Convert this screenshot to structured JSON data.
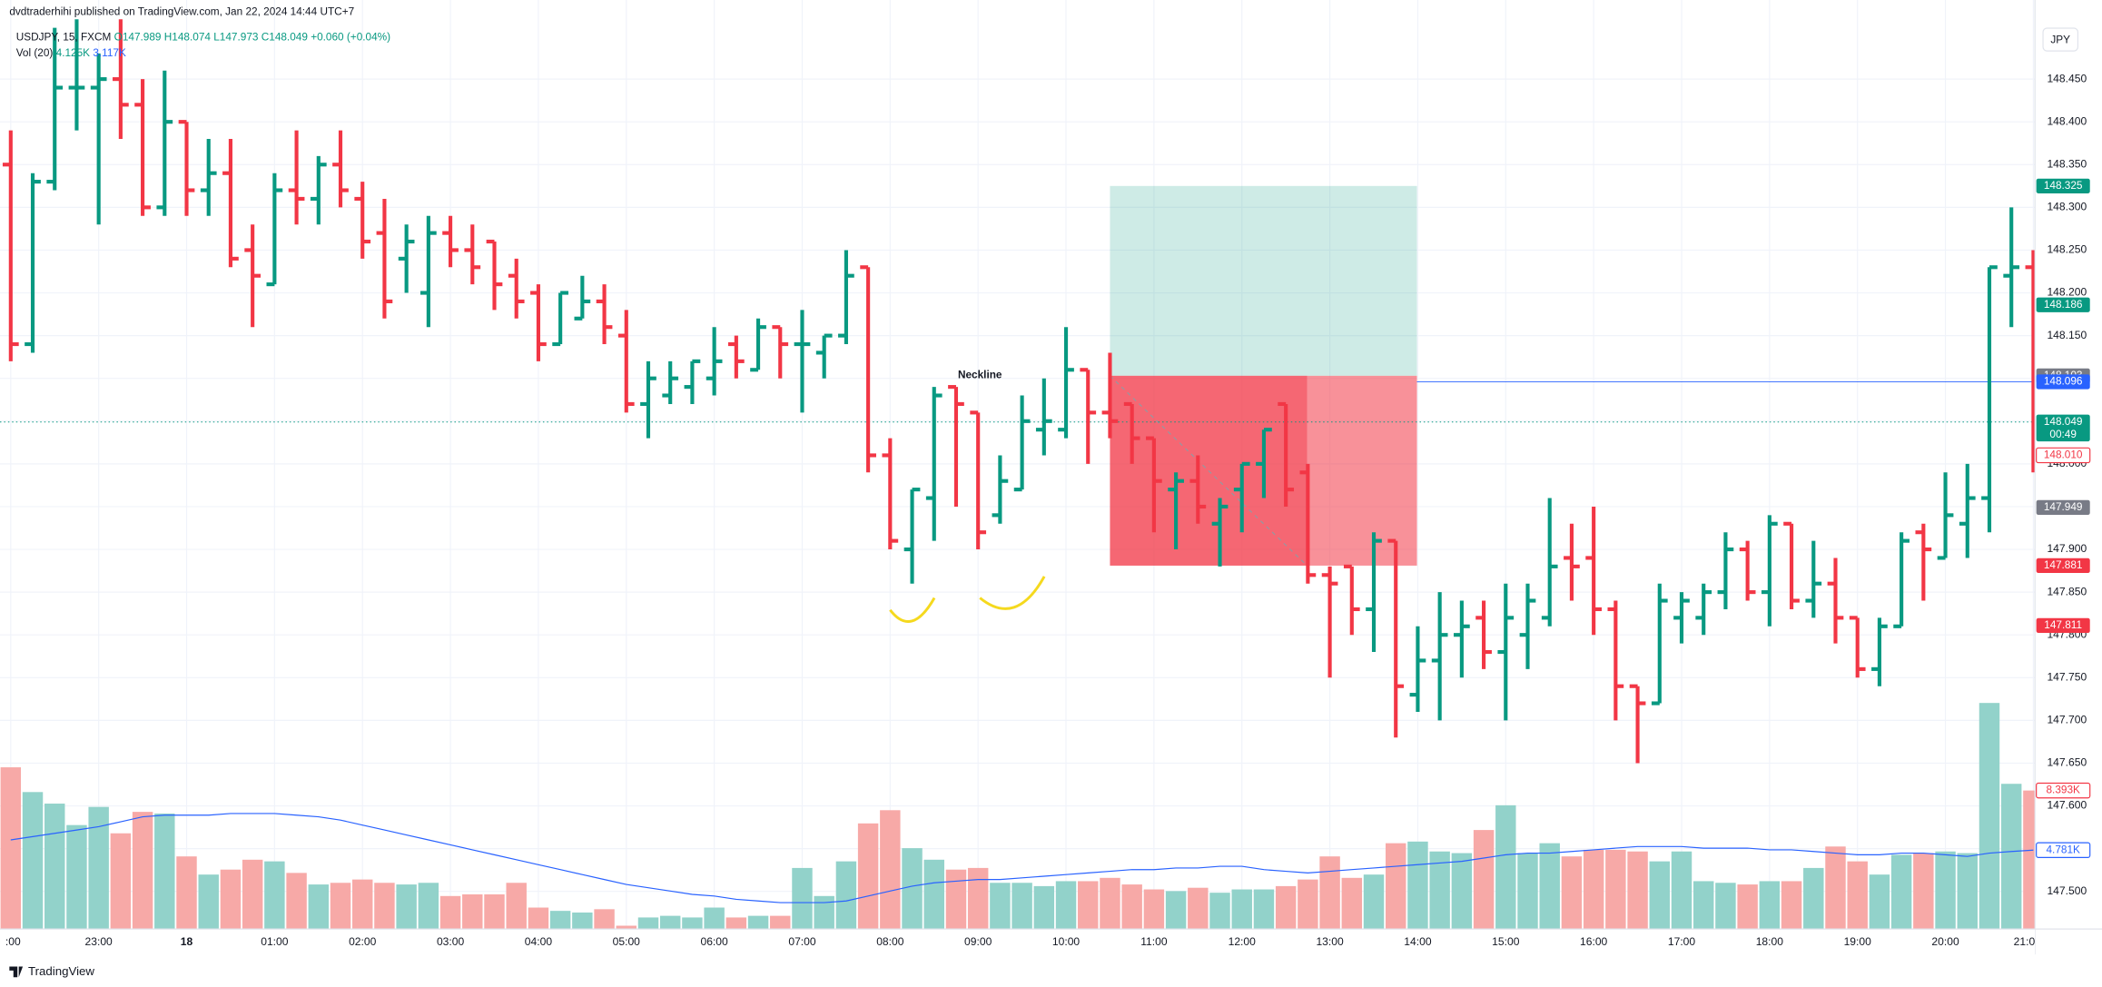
{
  "chart_data": {
    "type": "ohlc",
    "publisher": "dvdtraderhihi published on TradingView.com, Jan 22, 2024 14:44 UTC+7",
    "symbol": "USDJPY, 15, FXCM",
    "legend_values": [
      "O147.989",
      "H148.074",
      "L147.973",
      "C148.049",
      "+0.060 (+0.04%)"
    ],
    "volume_title": "Vol (20)",
    "volume_legend_values": [
      "4.125K",
      "3.117K"
    ],
    "currency": "JPY",
    "annotation": "Neckline",
    "logo": "TradingView",
    "x": [
      ":00",
      null,
      null,
      null,
      "23:00",
      null,
      null,
      null,
      "18",
      null,
      null,
      null,
      "01:00",
      null,
      null,
      null,
      "02:00",
      null,
      null,
      null,
      "03:00",
      null,
      null,
      null,
      "04:00",
      null,
      null,
      null,
      "05:00",
      null,
      null,
      null,
      "06:00",
      null,
      null,
      null,
      "07:00",
      null,
      null,
      null,
      "08:00",
      null,
      null,
      null,
      "09:00",
      null,
      null,
      null,
      "10:00",
      null,
      null,
      null,
      "11:00",
      null,
      null,
      null,
      "12:00",
      null,
      null,
      null,
      "13:00",
      null,
      null,
      null,
      "14:00",
      null,
      null,
      null,
      "15:00",
      null,
      null,
      null,
      "16:00",
      null,
      null,
      null,
      "17:00",
      null,
      null,
      null,
      "18:00",
      null,
      null,
      null,
      "19:00",
      null,
      null,
      null,
      "20:00",
      null,
      null,
      null,
      "21:0"
    ],
    "open": [
      148.35,
      148.14,
      148.33,
      148.44,
      148.44,
      148.45,
      148.42,
      148.3,
      148.4,
      148.32,
      148.34,
      148.25,
      148.21,
      148.32,
      148.31,
      148.35,
      148.31,
      148.27,
      148.24,
      148.2,
      148.27,
      148.25,
      148.26,
      148.22,
      148.2,
      148.14,
      148.17,
      148.19,
      148.15,
      148.07,
      148.08,
      148.09,
      148.1,
      148.14,
      148.11,
      148.16,
      148.14,
      148.13,
      148.15,
      148.23,
      148.01,
      147.9,
      147.96,
      148.09,
      148.06,
      147.94,
      147.97,
      148.04,
      148.04,
      148.11,
      148.06,
      148.07,
      148.03,
      147.97,
      147.98,
      147.93,
      147.97,
      148.0,
      148.07,
      147.99,
      147.87,
      147.88,
      147.83,
      147.91,
      147.73,
      147.77,
      147.8,
      147.82,
      147.78,
      147.8,
      147.82,
      147.89,
      147.89,
      147.83,
      147.74,
      147.72,
      147.82,
      147.82,
      147.85,
      147.9,
      147.85,
      147.93,
      147.84,
      147.86,
      147.82,
      147.76,
      147.81,
      147.92,
      147.89,
      147.93,
      147.96,
      148.22,
      148.23
    ],
    "high": [
      148.39,
      148.34,
      148.51,
      148.52,
      148.48,
      148.52,
      148.45,
      148.46,
      148.4,
      148.38,
      148.38,
      148.28,
      148.34,
      148.39,
      148.36,
      148.39,
      148.33,
      148.31,
      148.28,
      148.29,
      148.29,
      148.28,
      148.26,
      148.24,
      148.21,
      148.2,
      148.22,
      148.21,
      148.18,
      148.12,
      148.12,
      148.12,
      148.16,
      148.15,
      148.17,
      148.16,
      148.18,
      148.15,
      148.25,
      148.23,
      148.03,
      147.97,
      148.09,
      148.09,
      148.06,
      148.01,
      148.08,
      148.1,
      148.16,
      148.11,
      148.13,
      148.07,
      148.03,
      147.99,
      148.01,
      147.96,
      148.0,
      148.04,
      148.07,
      148.0,
      147.88,
      147.88,
      147.92,
      147.91,
      147.81,
      147.85,
      147.84,
      147.84,
      147.86,
      147.86,
      147.96,
      147.93,
      147.95,
      147.84,
      147.74,
      147.86,
      147.85,
      147.86,
      147.92,
      147.91,
      147.94,
      147.93,
      147.91,
      147.89,
      147.82,
      147.82,
      147.92,
      147.93,
      147.99,
      148.0,
      148.23,
      148.3,
      148.25
    ],
    "low": [
      148.12,
      148.13,
      148.32,
      148.39,
      148.28,
      148.38,
      148.29,
      148.29,
      148.29,
      148.29,
      148.23,
      148.16,
      148.21,
      148.28,
      148.28,
      148.3,
      148.24,
      148.17,
      148.2,
      148.16,
      148.23,
      148.21,
      148.18,
      148.17,
      148.12,
      148.14,
      148.17,
      148.14,
      148.06,
      148.03,
      148.07,
      148.07,
      148.08,
      148.1,
      148.11,
      148.1,
      148.06,
      148.1,
      148.14,
      147.99,
      147.9,
      147.86,
      147.91,
      147.95,
      147.9,
      147.93,
      147.97,
      148.01,
      148.03,
      148.0,
      148.03,
      148.0,
      147.92,
      147.9,
      147.93,
      147.88,
      147.92,
      147.96,
      147.95,
      147.86,
      147.75,
      147.8,
      147.78,
      147.68,
      147.71,
      147.7,
      147.75,
      147.76,
      147.7,
      147.76,
      147.81,
      147.84,
      147.8,
      147.7,
      147.65,
      147.72,
      147.79,
      147.8,
      147.83,
      147.84,
      147.81,
      147.83,
      147.82,
      147.79,
      147.75,
      147.74,
      147.81,
      147.84,
      147.89,
      147.89,
      147.92,
      148.16,
      147.99
    ],
    "close": [
      148.14,
      148.33,
      148.44,
      148.44,
      148.45,
      148.42,
      148.3,
      148.4,
      148.32,
      148.34,
      148.24,
      148.22,
      148.32,
      148.31,
      148.35,
      148.32,
      148.26,
      148.19,
      148.26,
      148.27,
      148.25,
      148.23,
      148.21,
      148.19,
      148.14,
      148.2,
      148.19,
      148.16,
      148.07,
      148.1,
      148.1,
      148.12,
      148.12,
      148.12,
      148.16,
      148.14,
      148.14,
      148.15,
      148.22,
      148.01,
      147.91,
      147.97,
      148.08,
      148.07,
      147.92,
      147.98,
      148.05,
      148.05,
      148.11,
      148.06,
      148.05,
      148.03,
      147.98,
      147.98,
      147.95,
      147.95,
      148.0,
      148.04,
      147.97,
      147.87,
      147.86,
      147.83,
      147.91,
      147.74,
      147.77,
      147.8,
      147.81,
      147.78,
      147.82,
      147.84,
      147.88,
      147.88,
      147.83,
      147.74,
      147.72,
      147.84,
      147.84,
      147.85,
      147.9,
      147.85,
      147.93,
      147.84,
      147.86,
      147.82,
      147.76,
      147.81,
      147.91,
      147.9,
      147.94,
      147.96,
      148.23,
      148.23,
      148.049
    ],
    "volume": [
      9.8,
      8.3,
      7.6,
      6.3,
      7.4,
      5.8,
      7.1,
      7.0,
      4.4,
      3.3,
      3.6,
      4.2,
      4.1,
      3.4,
      2.7,
      2.8,
      3.0,
      2.8,
      2.7,
      2.8,
      2.0,
      2.1,
      2.1,
      2.8,
      1.3,
      1.1,
      1.0,
      1.2,
      0.2,
      0.7,
      0.8,
      0.7,
      1.3,
      0.7,
      0.8,
      0.8,
      3.7,
      2.0,
      4.1,
      6.4,
      7.2,
      4.9,
      4.2,
      3.6,
      3.7,
      2.8,
      2.8,
      2.6,
      2.9,
      2.9,
      3.1,
      2.7,
      2.4,
      2.3,
      2.5,
      2.2,
      2.4,
      2.4,
      2.6,
      3.0,
      4.4,
      3.1,
      3.3,
      5.2,
      5.3,
      4.7,
      4.6,
      6.0,
      7.5,
      4.6,
      5.2,
      4.4,
      4.8,
      4.8,
      4.7,
      4.1,
      4.7,
      2.9,
      2.8,
      2.7,
      2.9,
      2.9,
      3.7,
      5.0,
      4.1,
      3.3,
      4.5,
      4.6,
      4.7,
      4.6,
      13.7,
      8.8,
      8.393
    ],
    "volume_ma": [
      5.4,
      5.6,
      5.8,
      6.0,
      6.2,
      6.5,
      6.8,
      6.9,
      6.9,
      6.9,
      7.0,
      7.0,
      7.0,
      6.9,
      6.8,
      6.6,
      6.3,
      6.0,
      5.7,
      5.4,
      5.1,
      4.8,
      4.5,
      4.2,
      3.9,
      3.6,
      3.3,
      3.0,
      2.7,
      2.5,
      2.3,
      2.1,
      2.0,
      1.8,
      1.7,
      1.6,
      1.6,
      1.6,
      1.7,
      2.0,
      2.3,
      2.6,
      2.8,
      2.9,
      3.0,
      3.0,
      3.1,
      3.2,
      3.3,
      3.4,
      3.5,
      3.6,
      3.6,
      3.7,
      3.7,
      3.8,
      3.8,
      3.6,
      3.5,
      3.4,
      3.5,
      3.6,
      3.7,
      3.8,
      3.9,
      4.0,
      4.1,
      4.3,
      4.5,
      4.6,
      4.6,
      4.7,
      4.8,
      4.9,
      5.0,
      5.0,
      5.0,
      4.9,
      4.9,
      4.9,
      4.8,
      4.8,
      4.7,
      4.6,
      4.5,
      4.5,
      4.6,
      4.6,
      4.5,
      4.4,
      4.6,
      4.7,
      4.781
    ],
    "up_color": "#089981",
    "down_color": "#f23645",
    "volume_up_color": "#92d2ca",
    "volume_down_color": "#f7a9a7",
    "volume_ma_color": "#2962ff",
    "ylim": [
      147.456,
      148.5425
    ],
    "vlim": [
      0,
      56.3
    ],
    "yticks": [
      {
        "value": 147.5,
        "label": "147.500"
      },
      {
        "value": 147.55,
        "label": "147.550"
      },
      {
        "value": 147.6,
        "label": "147.600"
      },
      {
        "value": 147.65,
        "label": "147.650"
      },
      {
        "value": 147.7,
        "label": "147.700"
      },
      {
        "value": 147.75,
        "label": "147.750"
      },
      {
        "value": 147.8,
        "label": "147.800"
      },
      {
        "value": 147.85,
        "label": "147.850"
      },
      {
        "value": 147.9,
        "label": "147.900"
      },
      {
        "value": 147.95,
        "label": "147.950"
      },
      {
        "value": 148.0,
        "label": "148.000"
      },
      {
        "value": 148.05,
        "label": "148.050"
      },
      {
        "value": 148.1,
        "label": "148.100"
      },
      {
        "value": 148.15,
        "label": "148.150"
      },
      {
        "value": 148.2,
        "label": "148.200"
      },
      {
        "value": 148.25,
        "label": "148.250"
      },
      {
        "value": 148.3,
        "label": "148.300"
      },
      {
        "value": 148.35,
        "label": "148.350"
      },
      {
        "value": 148.4,
        "label": "148.400"
      },
      {
        "value": 148.45,
        "label": "148.450"
      }
    ],
    "grid": true,
    "price_labels": [
      {
        "value": 148.325,
        "color": "#089981"
      },
      {
        "value": 148.186,
        "color": "#089981"
      },
      {
        "value": 148.103,
        "color": "#787b86"
      },
      {
        "value": 148.096,
        "color": "#2962ff"
      },
      {
        "value": 148.049,
        "color": "#089981",
        "countdown": "00:49"
      },
      {
        "value": 148.01,
        "label": "148.010",
        "color": "#f23645",
        "outline": true
      },
      {
        "value": 147.949,
        "color": "#787b86"
      },
      {
        "value": 147.881,
        "color": "#f23645"
      },
      {
        "value": 147.811,
        "color": "#f23645"
      }
    ],
    "volume_labels": [
      {
        "value": 8.393,
        "label": "8.393K",
        "color": "#f23645",
        "outline": true
      },
      {
        "value": 4.781,
        "label": "4.781K",
        "color": "#2962ff",
        "outline": true
      }
    ]
  }
}
